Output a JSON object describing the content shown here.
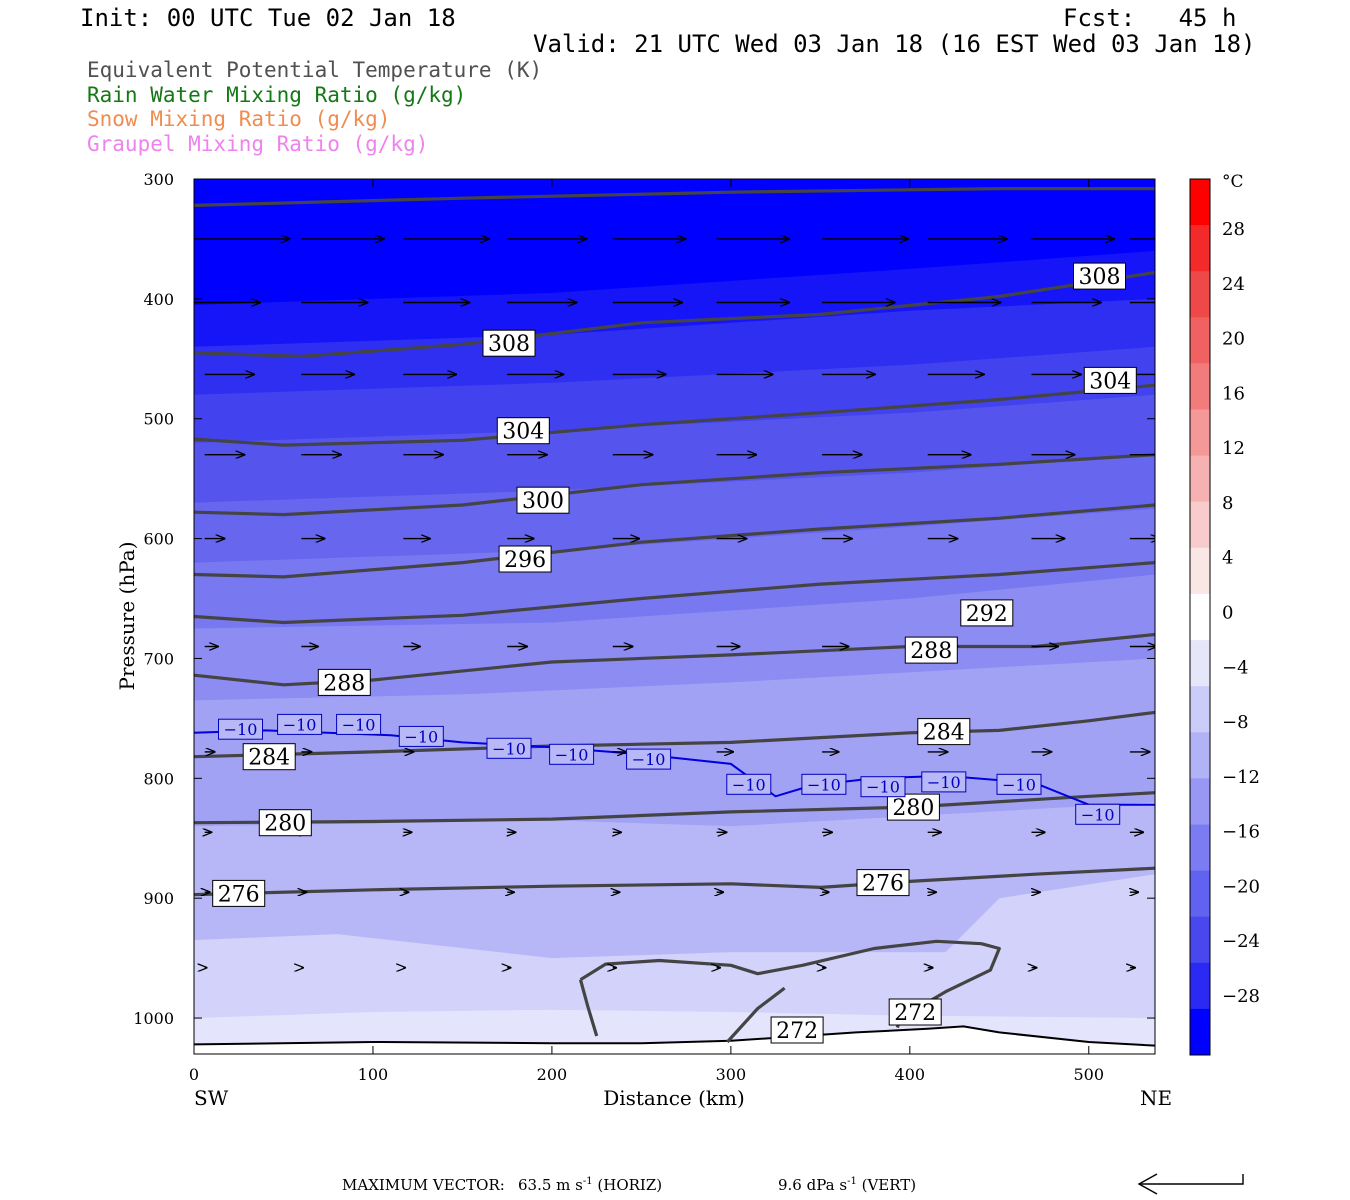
{
  "header": {
    "init": "Init: 00 UTC Tue 02 Jan 18",
    "fcst": "Fcst:   45 h",
    "valid": "Valid: 21 UTC Wed 03 Jan 18 (16 EST Wed 03 Jan 18)"
  },
  "legend": {
    "items": [
      {
        "label": "Equivalent Potential Temperature (K)",
        "color": "#505050"
      },
      {
        "label": "Rain Water Mixing Ratio (g/kg)",
        "color": "#147814"
      },
      {
        "label": "Snow Mixing Ratio (g/kg)",
        "color": "#f08c50"
      },
      {
        "label": "Graupel Mixing Ratio (g/kg)",
        "color": "#ee82ee"
      }
    ]
  },
  "footer": {
    "prefix": "MAXIMUM VECTOR:",
    "horiz_value": "63.5 m s",
    "horiz_exp": "-1",
    "horiz_suffix": "(HORIZ)",
    "vert_value": "9.6 dPa s",
    "vert_exp": "-1",
    "vert_suffix": "(VERT)"
  },
  "chart_data": {
    "type": "cross-section",
    "xlabel": "Distance (km)",
    "ylabel": "Pressure (hPa)",
    "x_ticks": [
      0,
      100,
      200,
      300,
      400,
      500
    ],
    "x_range": [
      0,
      537
    ],
    "y_ticks": [
      300,
      400,
      500,
      600,
      700,
      800,
      900,
      1000
    ],
    "y_range": [
      300,
      1030
    ],
    "endpoint_labels": {
      "left": "SW",
      "right": "NE"
    },
    "colorbar": {
      "unit": "°C",
      "labels": [
        28,
        24,
        20,
        16,
        12,
        8,
        4,
        0,
        -4,
        -8,
        -12,
        -16,
        -20,
        -24,
        -28
      ],
      "colors": [
        "#ff0000",
        "#f42a2a",
        "#ee4848",
        "#f06262",
        "#f27c7c",
        "#f49898",
        "#f6b2b2",
        "#f8cccc",
        "#fbe6e6",
        "#ffffff",
        "#e6e6fb",
        "#ccccf8",
        "#b2b2f6",
        "#9898f4",
        "#7c7cf2",
        "#6262f0",
        "#4848ee",
        "#2a2af4",
        "#0000ff"
      ]
    },
    "temperature_bands": [
      {
        "temp": -10,
        "color": "#d2d2fa",
        "profile": [
          [
            0,
            1000
          ],
          [
            100,
            995
          ],
          [
            200,
            993
          ],
          [
            300,
            995
          ],
          [
            400,
            998
          ],
          [
            537,
            1000
          ]
        ]
      },
      {
        "temp": -12,
        "color": "#b7b7f7",
        "profile": [
          [
            0,
            935
          ],
          [
            80,
            930
          ],
          [
            200,
            950
          ],
          [
            300,
            945
          ],
          [
            420,
            945
          ],
          [
            450,
            900
          ],
          [
            537,
            880
          ]
        ]
      },
      {
        "temp": -14,
        "color": "#a2a2f5",
        "profile": [
          [
            0,
            840
          ],
          [
            200,
            835
          ],
          [
            300,
            840
          ],
          [
            537,
            820
          ]
        ]
      },
      {
        "temp": -16,
        "color": "#8c8cf3",
        "profile": [
          [
            0,
            735
          ],
          [
            150,
            730
          ],
          [
            300,
            720
          ],
          [
            537,
            700
          ]
        ]
      },
      {
        "temp": -18,
        "color": "#7878f1",
        "profile": [
          [
            0,
            675
          ],
          [
            200,
            670
          ],
          [
            400,
            650
          ],
          [
            537,
            630
          ]
        ]
      },
      {
        "temp": -20,
        "color": "#6666ef",
        "profile": [
          [
            0,
            620
          ],
          [
            200,
            610
          ],
          [
            400,
            590
          ],
          [
            537,
            575
          ]
        ]
      },
      {
        "temp": -22,
        "color": "#5555ee",
        "profile": [
          [
            0,
            570
          ],
          [
            200,
            560
          ],
          [
            400,
            545
          ],
          [
            537,
            530
          ]
        ]
      },
      {
        "temp": -24,
        "color": "#4242ef",
        "profile": [
          [
            0,
            520
          ],
          [
            200,
            510
          ],
          [
            400,
            495
          ],
          [
            537,
            480
          ]
        ]
      },
      {
        "temp": -26,
        "color": "#2f2ff2",
        "profile": [
          [
            0,
            480
          ],
          [
            200,
            470
          ],
          [
            400,
            455
          ],
          [
            537,
            440
          ]
        ]
      },
      {
        "temp": -28,
        "color": "#1515f8",
        "profile": [
          [
            0,
            440
          ],
          [
            200,
            430
          ],
          [
            400,
            410
          ],
          [
            537,
            400
          ]
        ]
      },
      {
        "temp": -30,
        "color": "#0000ff",
        "profile": [
          [
            0,
            405
          ],
          [
            200,
            395
          ],
          [
            400,
            375
          ],
          [
            537,
            360
          ]
        ]
      }
    ],
    "theta_e_contours": [
      {
        "value": 272,
        "points": [
          [
            216,
            968
          ],
          [
            230,
            955
          ],
          [
            260,
            952
          ],
          [
            300,
            956
          ],
          [
            315,
            963
          ],
          [
            340,
            956
          ],
          [
            380,
            942
          ],
          [
            415,
            936
          ],
          [
            440,
            938
          ],
          [
            450,
            942
          ],
          [
            445,
            960
          ],
          [
            420,
            978
          ],
          [
            395,
            1000
          ],
          [
            393,
            1008
          ]
        ]
      },
      {
        "value": 272,
        "points": [
          [
            216,
            968
          ],
          [
            220,
            990
          ],
          [
            225,
            1015
          ]
        ]
      },
      {
        "value": 272,
        "points": [
          [
            298,
            1020
          ],
          [
            315,
            992
          ],
          [
            330,
            975
          ]
        ]
      },
      {
        "value": 276,
        "points": [
          [
            0,
            897
          ],
          [
            100,
            893
          ],
          [
            200,
            890
          ],
          [
            300,
            888
          ],
          [
            350,
            891
          ],
          [
            400,
            886
          ],
          [
            470,
            880
          ],
          [
            537,
            875
          ]
        ]
      },
      {
        "value": 280,
        "points": [
          [
            0,
            837
          ],
          [
            100,
            836
          ],
          [
            200,
            834
          ],
          [
            300,
            828
          ],
          [
            400,
            824
          ],
          [
            500,
            815
          ],
          [
            537,
            812
          ]
        ]
      },
      {
        "value": 284,
        "points": [
          [
            0,
            782
          ],
          [
            100,
            778
          ],
          [
            200,
            773
          ],
          [
            300,
            770
          ],
          [
            400,
            762
          ],
          [
            450,
            760
          ],
          [
            500,
            752
          ],
          [
            537,
            745
          ]
        ]
      },
      {
        "value": 288,
        "points": [
          [
            0,
            714
          ],
          [
            50,
            722
          ],
          [
            100,
            718
          ],
          [
            200,
            703
          ],
          [
            300,
            697
          ],
          [
            400,
            690
          ],
          [
            470,
            690
          ],
          [
            537,
            680
          ]
        ]
      },
      {
        "value": 292,
        "points": [
          [
            0,
            665
          ],
          [
            50,
            670
          ],
          [
            150,
            664
          ],
          [
            250,
            650
          ],
          [
            350,
            638
          ],
          [
            450,
            630
          ],
          [
            537,
            620
          ]
        ]
      },
      {
        "value": 296,
        "points": [
          [
            0,
            630
          ],
          [
            50,
            632
          ],
          [
            150,
            620
          ],
          [
            250,
            603
          ],
          [
            350,
            592
          ],
          [
            450,
            583
          ],
          [
            537,
            572
          ]
        ]
      },
      {
        "value": 300,
        "points": [
          [
            0,
            578
          ],
          [
            50,
            580
          ],
          [
            150,
            572
          ],
          [
            250,
            555
          ],
          [
            350,
            545
          ],
          [
            450,
            538
          ],
          [
            537,
            530
          ]
        ]
      },
      {
        "value": 304,
        "points": [
          [
            0,
            517
          ],
          [
            50,
            522
          ],
          [
            150,
            518
          ],
          [
            250,
            505
          ],
          [
            350,
            495
          ],
          [
            450,
            484
          ],
          [
            537,
            472
          ]
        ]
      },
      {
        "value": 308,
        "points": [
          [
            0,
            445
          ],
          [
            60,
            448
          ],
          [
            150,
            438
          ],
          [
            250,
            420
          ],
          [
            350,
            413
          ],
          [
            450,
            398
          ],
          [
            537,
            378
          ]
        ]
      },
      {
        "value": 312,
        "points": [
          [
            0,
            322
          ],
          [
            150,
            316
          ],
          [
            300,
            311
          ],
          [
            450,
            308
          ],
          [
            537,
            308
          ]
        ]
      }
    ],
    "theta_e_labels": [
      {
        "value": 308,
        "x": 506,
        "p": 381
      },
      {
        "value": 308,
        "x": 176,
        "p": 437
      },
      {
        "value": 304,
        "x": 512,
        "p": 468
      },
      {
        "value": 304,
        "x": 184,
        "p": 510
      },
      {
        "value": 300,
        "x": 195,
        "p": 568
      },
      {
        "value": 296,
        "x": 185,
        "p": 617
      },
      {
        "value": 292,
        "x": 443,
        "p": 662
      },
      {
        "value": 288,
        "x": 412,
        "p": 693
      },
      {
        "value": 288,
        "x": 84,
        "p": 720
      },
      {
        "value": 284,
        "x": 419,
        "p": 761
      },
      {
        "value": 284,
        "x": 42,
        "p": 782
      },
      {
        "value": 280,
        "x": 402,
        "p": 824
      },
      {
        "value": 280,
        "x": 51,
        "p": 837
      },
      {
        "value": 276,
        "x": 385,
        "p": 887
      },
      {
        "value": 276,
        "x": 25,
        "p": 896
      },
      {
        "value": 272,
        "x": 403,
        "p": 995
      },
      {
        "value": 272,
        "x": 337,
        "p": 1010
      }
    ],
    "isotherm_minus10": {
      "points": [
        [
          0,
          762
        ],
        [
          40,
          760
        ],
        [
          110,
          764
        ],
        [
          150,
          770
        ],
        [
          200,
          774
        ],
        [
          250,
          780
        ],
        [
          300,
          788
        ],
        [
          325,
          815
        ],
        [
          345,
          806
        ],
        [
          380,
          800
        ],
        [
          420,
          798
        ],
        [
          470,
          804
        ],
        [
          500,
          822
        ],
        [
          537,
          822
        ]
      ],
      "labels": [
        {
          "text": "−10",
          "x": 26,
          "p": 759
        },
        {
          "text": "−10",
          "x": 59,
          "p": 755
        },
        {
          "text": "−10",
          "x": 92,
          "p": 755
        },
        {
          "text": "−10",
          "x": 127,
          "p": 765
        },
        {
          "text": "−10",
          "x": 176,
          "p": 775
        },
        {
          "text": "−10",
          "x": 211,
          "p": 780
        },
        {
          "text": "−10",
          "x": 254,
          "p": 784
        },
        {
          "text": "−10",
          "x": 310,
          "p": 805
        },
        {
          "text": "−10",
          "x": 352,
          "p": 805
        },
        {
          "text": "−10",
          "x": 385,
          "p": 807
        },
        {
          "text": "−10",
          "x": 419,
          "p": 803
        },
        {
          "text": "−10",
          "x": 461,
          "p": 805
        },
        {
          "text": "−10",
          "x": 505,
          "p": 830
        }
      ]
    },
    "terrain": [
      [
        0,
        1022
      ],
      [
        100,
        1020
      ],
      [
        200,
        1021
      ],
      [
        250,
        1021
      ],
      [
        300,
        1019
      ],
      [
        370,
        1012
      ],
      [
        410,
        1009
      ],
      [
        430,
        1007
      ],
      [
        450,
        1012
      ],
      [
        500,
        1020
      ],
      [
        537,
        1023
      ]
    ],
    "wind_vectors": [
      {
        "p": 350,
        "x": [
          0,
          60,
          117,
          175,
          234,
          292,
          351,
          410,
          468,
          523
        ],
        "u": [
          58,
          50,
          52,
          48,
          44,
          44,
          52,
          48,
          50,
          50
        ]
      },
      {
        "p": 403,
        "x": [
          0,
          60,
          117,
          175,
          234,
          292,
          351,
          410,
          468,
          523
        ],
        "u": [
          40,
          40,
          40,
          42,
          42,
          44,
          44,
          44,
          42,
          42
        ]
      },
      {
        "p": 463,
        "x": [
          6,
          60,
          117,
          175,
          234,
          292,
          351,
          410,
          468,
          523
        ],
        "u": [
          30,
          32,
          32,
          34,
          32,
          34,
          32,
          34,
          30,
          30
        ]
      },
      {
        "p": 530,
        "x": [
          6,
          60,
          117,
          175,
          234,
          292,
          351,
          410,
          468,
          523
        ],
        "u": [
          24,
          24,
          24,
          24,
          24,
          24,
          24,
          26,
          26,
          24
        ]
      },
      {
        "p": 600,
        "x": [
          6,
          60,
          117,
          175,
          234,
          292,
          351,
          410,
          468,
          523
        ],
        "u": [
          12,
          14,
          16,
          16,
          16,
          18,
          18,
          18,
          20,
          18
        ]
      },
      {
        "p": 690,
        "x": [
          6,
          60,
          117,
          175,
          234,
          292,
          351,
          410,
          468,
          523
        ],
        "u": [
          8,
          10,
          10,
          12,
          12,
          14,
          16,
          18,
          16,
          16
        ]
      },
      {
        "p": 778,
        "x": [
          6,
          60,
          117,
          175,
          234,
          292,
          351,
          410,
          468,
          523
        ],
        "u": [
          6,
          6,
          6,
          8,
          8,
          10,
          10,
          12,
          12,
          12
        ]
      },
      {
        "p": 845,
        "x": [
          6,
          60,
          117,
          175,
          234,
          292,
          351,
          410,
          468,
          523
        ],
        "u": [
          4,
          4,
          5,
          5,
          5,
          6,
          6,
          8,
          8,
          8
        ]
      },
      {
        "p": 895,
        "x": [
          6,
          60,
          117,
          175,
          234,
          292,
          351,
          410,
          468,
          523
        ],
        "u": [
          3,
          3,
          3,
          4,
          4,
          4,
          4,
          5,
          5,
          5
        ]
      },
      {
        "p": 958,
        "x": [
          6,
          60,
          117,
          175,
          234,
          292,
          351,
          410,
          468,
          523
        ],
        "u": [
          1,
          1,
          1,
          2,
          2,
          2,
          2,
          3,
          3,
          3
        ]
      }
    ],
    "reference_vector": {
      "direction": "westward"
    }
  }
}
